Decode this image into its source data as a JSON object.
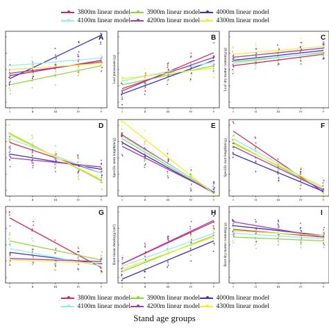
{
  "legend": {
    "entries": [
      {
        "label": "3800m linear model",
        "color": "#d62a50"
      },
      {
        "label": "3900m linear model",
        "color": "#8fd63a"
      },
      {
        "label": "4000m linear model",
        "color": "#3a2ec4"
      },
      {
        "label": "4100m linear model",
        "color": "#8ff0ee"
      },
      {
        "label": "4200m linear model",
        "color": "#a33ab8"
      },
      {
        "label": "4300m linear model",
        "color": "#f4ee2a"
      }
    ]
  },
  "x_title": "Stand age groups",
  "chart_data": [
    {
      "type": "scatter",
      "panel": "A",
      "ylabel": "",
      "x": [
        "I",
        "II",
        "III",
        "IV",
        "V"
      ],
      "lines": [
        [
          0.42,
          0.62
        ],
        [
          0.3,
          0.55
        ],
        [
          0.38,
          0.95
        ],
        [
          0.55,
          0.65
        ],
        [
          0.45,
          0.6
        ],
        [
          0.5,
          0.58
        ]
      ]
    },
    {
      "type": "scatter",
      "panel": "B",
      "ylabel": "Leaf potassium (g)",
      "x": [
        "I",
        "II",
        "III",
        "IV",
        "V"
      ],
      "lines": [
        [
          0.22,
          0.72
        ],
        [
          0.3,
          0.55
        ],
        [
          0.18,
          0.62
        ],
        [
          0.35,
          0.6
        ],
        [
          0.25,
          0.66
        ],
        [
          0.38,
          0.52
        ]
      ]
    },
    {
      "type": "scatter",
      "panel": "C",
      "ylabel": "Leaf dry matter content(g/g)",
      "x": [
        "I",
        "II",
        "III",
        "IV",
        "V"
      ],
      "lines": [
        [
          0.55,
          0.7
        ],
        [
          0.6,
          0.72
        ],
        [
          0.62,
          0.75
        ],
        [
          0.58,
          0.73
        ],
        [
          0.66,
          0.78
        ],
        [
          0.7,
          0.8
        ]
      ]
    },
    {
      "type": "scatter",
      "panel": "D",
      "ylabel": "",
      "x": [
        "I",
        "II",
        "III",
        "IV",
        "V"
      ],
      "lines": [
        [
          0.7,
          0.3
        ],
        [
          0.82,
          0.2
        ],
        [
          0.55,
          0.35
        ],
        [
          0.75,
          0.3
        ],
        [
          0.5,
          0.38
        ],
        [
          0.8,
          0.22
        ]
      ]
    },
    {
      "type": "scatter",
      "panel": "E",
      "ylabel": "Specific stem length(m/g)",
      "x": [
        "I",
        "II",
        "III",
        "IV",
        "V"
      ],
      "lines": [
        [
          0.8,
          0.05
        ],
        [
          0.75,
          0.04
        ],
        [
          0.7,
          0.04
        ],
        [
          0.78,
          0.06
        ],
        [
          0.65,
          0.05
        ],
        [
          1.05,
          0.03
        ]
      ]
    },
    {
      "type": "scatter",
      "panel": "F",
      "ylabel": "Specific root length(m/g)",
      "x": [
        "I",
        "II",
        "III",
        "IV",
        "V"
      ],
      "lines": [
        [
          0.85,
          0.05
        ],
        [
          0.7,
          0.08
        ],
        [
          0.55,
          0.06
        ],
        [
          0.75,
          0.1
        ],
        [
          0.65,
          0.08
        ],
        [
          0.68,
          0.12
        ]
      ]
    },
    {
      "type": "scatter",
      "panel": "G",
      "ylabel": "",
      "x": [
        "I",
        "II",
        "III",
        "IV",
        "V"
      ],
      "lines": [
        [
          0.85,
          0.2
        ],
        [
          0.55,
          0.3
        ],
        [
          0.4,
          0.25
        ],
        [
          0.45,
          0.22
        ],
        [
          0.32,
          0.28
        ],
        [
          0.3,
          0.26
        ]
      ]
    },
    {
      "type": "scatter",
      "panel": "H",
      "ylabel": "Root tissue density(g/cm³)",
      "x": [
        "I",
        "II",
        "III",
        "IV",
        "V"
      ],
      "lines": [
        [
          0.25,
          0.8
        ],
        [
          0.15,
          0.62
        ],
        [
          0.05,
          0.55
        ],
        [
          0.22,
          0.65
        ],
        [
          0.25,
          0.82
        ],
        [
          0.18,
          0.6
        ]
      ]
    },
    {
      "type": "scatter",
      "panel": "I",
      "ylabel": "Root dry matter content(g/g)",
      "x": [
        "I",
        "II",
        "III",
        "IV",
        "V"
      ],
      "lines": [
        [
          0.7,
          0.6
        ],
        [
          0.6,
          0.55
        ],
        [
          0.75,
          0.62
        ],
        [
          0.65,
          0.58
        ],
        [
          0.8,
          0.6
        ],
        [
          0.68,
          0.62
        ]
      ]
    }
  ]
}
